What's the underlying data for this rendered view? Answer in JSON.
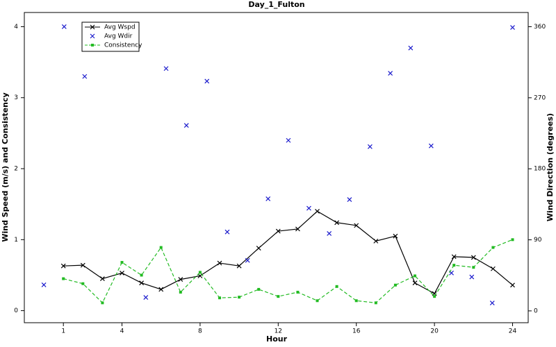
{
  "chart_data": {
    "type": "line",
    "title": "Day_1_Fulton",
    "x_label": "Hour",
    "y_label": "Wind Speed (m/s) and Consistency",
    "y2_label": "Wind Direction (degrees)",
    "x": [
      1,
      2,
      3,
      4,
      5,
      6,
      7,
      8,
      9,
      10,
      11,
      12,
      13,
      14,
      15,
      16,
      17,
      18,
      19,
      20,
      21,
      22,
      23,
      24
    ],
    "series": [
      {
        "name": "Avg Wspd",
        "color": "#000000",
        "style": "line",
        "marker": "x",
        "dash": false,
        "values": [
          0.63,
          0.64,
          0.45,
          0.53,
          0.39,
          0.3,
          0.44,
          0.49,
          0.67,
          0.63,
          0.88,
          1.12,
          1.15,
          1.4,
          1.24,
          1.2,
          0.98,
          1.05,
          0.39,
          0.24,
          0.76,
          0.75,
          0.59,
          0.36
        ]
      },
      {
        "name": "Avg Wdir",
        "color": "#1a1acc",
        "style": "markers",
        "marker": "x",
        "axis": "y2",
        "x": [
          0,
          1.04,
          2.09,
          5.22,
          6.26,
          7.3,
          8.35,
          9.39,
          10.43,
          11.48,
          12.52,
          13.57,
          14.61,
          15.65,
          16.7,
          17.74,
          18.78,
          19.83,
          20.87,
          21.91,
          22.96,
          24
        ],
        "values": [
          33,
          360,
          297,
          17,
          307,
          235,
          291,
          100,
          64,
          142,
          216,
          130,
          98,
          141,
          208,
          301,
          333,
          209,
          48,
          43,
          10,
          359
        ]
      },
      {
        "name": "Consistency",
        "color": "#22bb22",
        "style": "line",
        "marker": "square",
        "dash": true,
        "values": [
          0.45,
          0.38,
          0.11,
          0.68,
          0.5,
          0.89,
          0.26,
          0.54,
          0.18,
          0.19,
          0.3,
          0.2,
          0.26,
          0.14,
          0.34,
          0.14,
          0.11,
          0.36,
          0.49,
          0.2,
          0.64,
          0.61,
          0.89,
          1.0
        ]
      }
    ],
    "xlim": [
      -1,
      24.8
    ],
    "xticks": [
      1,
      4,
      8,
      12,
      16,
      20,
      24
    ],
    "ylim": [
      -0.17,
      4.2
    ],
    "yticks": [
      0,
      1,
      2,
      3,
      4
    ],
    "y2lim": [
      -15,
      378
    ],
    "y2ticks": [
      0,
      90,
      180,
      270,
      360
    ],
    "legend": "top-left"
  }
}
